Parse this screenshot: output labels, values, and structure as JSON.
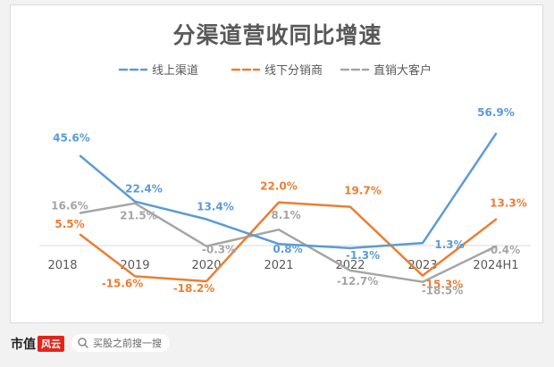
{
  "chart_data": {
    "type": "line",
    "title": "分渠道营收同比增速",
    "categories": [
      "2018",
      "2019",
      "2020",
      "2021",
      "2022",
      "2023",
      "2024H1"
    ],
    "unit": "%",
    "legend_position": "top",
    "grid": false,
    "zero_line": true,
    "series": [
      {
        "name": "线上渠道",
        "color": "#5b9bd5",
        "values": [
          45.6,
          22.4,
          13.4,
          0.8,
          -1.3,
          1.3,
          56.9
        ],
        "start": 0
      },
      {
        "name": "线下分销商",
        "color": "#ed7d31",
        "values": [
          5.5,
          -15.6,
          -18.2,
          22.0,
          19.7,
          -15.3,
          13.3
        ],
        "start": 0
      },
      {
        "name": "直销大客户",
        "color": "#a5a5a5",
        "values": [
          16.6,
          21.5,
          -0.3,
          8.1,
          -12.7,
          -18.5,
          -0.4
        ],
        "start": 0
      }
    ],
    "labels": [
      [
        "45.6%",
        "22.4%",
        "13.4%",
        "0.8%",
        "-1.3%",
        "1.3%",
        "56.9%"
      ],
      [
        "5.5%",
        "-15.6%",
        "-18.2%",
        "22.0%",
        "19.7%",
        "-15.3%",
        "13.3%"
      ],
      [
        "16.6%",
        "21.5%",
        "-0.3%",
        "8.1%",
        "-12.7%",
        "-18.5%",
        "-0.4%"
      ]
    ]
  },
  "footer": {
    "brand": "市值",
    "brand_mark": "风云",
    "search_icon": "search-icon",
    "search_placeholder": "买股之前搜一搜"
  }
}
